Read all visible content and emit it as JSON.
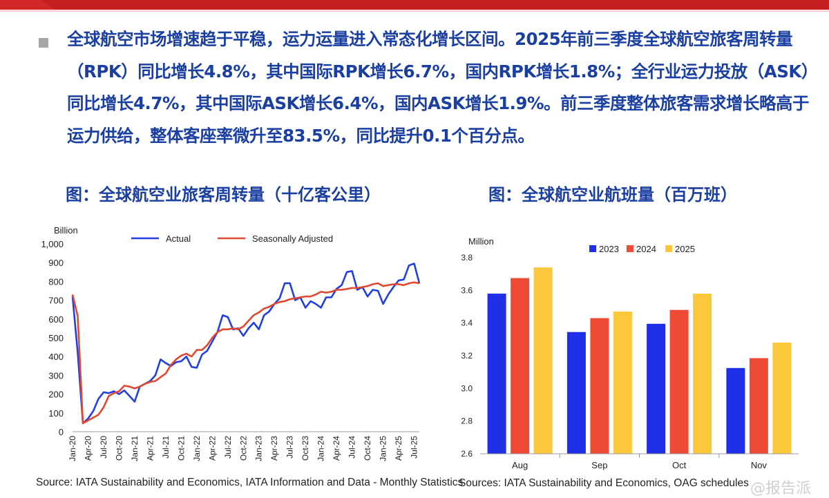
{
  "paragraph": "全球航空市场增速趋于平稳，运力运量进入常态化增长区间。2025年前三季度全球航空旅客周转量（RPK）同比增长4.8%，其中国际RPK增长6.7%，国内RPK增长1.8%；全行业运力投放（ASK）同比增长4.7%，其中国际ASK增长6.4%，国内ASK增长1.9%。前三季度整体旅客需求增长略高于运力供给，整体客座率微升至83.5%，同比提升0.1个百分点。",
  "left_title": "图：全球航空业旅客周转量（十亿客公里）",
  "right_title": "图：全球航空业航班量（百万班）",
  "left_source": "Source: IATA Sustainability and Economics, IATA Information and Data - Monthly Statistics",
  "right_source": "Sources: IATA Sustainability and Economics, OAG schedules",
  "watermark": "@报告派",
  "colors": {
    "title_blue": "#1a3fa0",
    "actual": "#1f3fe0",
    "seasonal": "#e0492f",
    "y2023": "#1f2fe8",
    "y2024": "#ee4a36",
    "y2025": "#fac83a",
    "topbar": "#d32626"
  },
  "chart_data": [
    {
      "type": "line",
      "ylabel": "Billion",
      "ylim": [
        0,
        1000
      ],
      "yticks": [
        "0",
        "100",
        "200",
        "300",
        "400",
        "500",
        "600",
        "700",
        "800",
        "900",
        "1,000"
      ],
      "xticks": [
        "Jan-20",
        "Apr-20",
        "Jul-20",
        "Oct-20",
        "Jan-21",
        "Apr-21",
        "Jul-21",
        "Oct-21",
        "Jan-22",
        "Apr-22",
        "Jul-22",
        "Oct-22",
        "Jan-23",
        "Apr-23",
        "Jul-23",
        "Oct-23",
        "Jan-24",
        "Apr-24",
        "Jul-24",
        "Oct-24",
        "Jan-25",
        "Apr-25",
        "Jul-25"
      ],
      "grid": false,
      "legend": "top",
      "series": [
        {
          "name": "Actual",
          "values": [
            720,
            420,
            45,
            70,
            110,
            175,
            210,
            205,
            215,
            200,
            220,
            190,
            160,
            240,
            255,
            270,
            300,
            385,
            365,
            350,
            370,
            375,
            400,
            345,
            340,
            410,
            430,
            480,
            530,
            620,
            610,
            545,
            550,
            510,
            550,
            580,
            545,
            620,
            640,
            680,
            710,
            790,
            790,
            700,
            715,
            660,
            695,
            680,
            660,
            715,
            715,
            760,
            780,
            850,
            855,
            755,
            770,
            720,
            755,
            750,
            680,
            730,
            770,
            805,
            810,
            885,
            895,
            790
          ]
        },
        {
          "name": "Seasonally Adjusted",
          "values": [
            730,
            615,
            45,
            60,
            75,
            90,
            130,
            190,
            205,
            215,
            245,
            240,
            230,
            240,
            255,
            265,
            270,
            290,
            310,
            355,
            385,
            405,
            415,
            400,
            435,
            435,
            460,
            500,
            530,
            545,
            545,
            550,
            545,
            560,
            590,
            620,
            635,
            655,
            665,
            680,
            690,
            695,
            705,
            710,
            715,
            720,
            720,
            730,
            745,
            740,
            745,
            755,
            755,
            760,
            765,
            765,
            770,
            775,
            785,
            790,
            775,
            780,
            785,
            785,
            780,
            790,
            795,
            790
          ]
        }
      ]
    },
    {
      "type": "bar",
      "ylabel": "Million",
      "ylim": [
        2.6,
        3.8
      ],
      "yticks": [
        "2.6",
        "2.8",
        "3.0",
        "3.2",
        "3.4",
        "3.6",
        "3.8"
      ],
      "categories": [
        "Aug",
        "Sep",
        "Oct",
        "Nov"
      ],
      "legend": "top",
      "series": [
        {
          "name": "2023",
          "values": [
            3.58,
            3.345,
            3.395,
            3.125
          ]
        },
        {
          "name": "2024",
          "values": [
            3.675,
            3.43,
            3.48,
            3.185
          ]
        },
        {
          "name": "2025",
          "values": [
            3.74,
            3.47,
            3.58,
            3.28
          ]
        }
      ]
    }
  ]
}
